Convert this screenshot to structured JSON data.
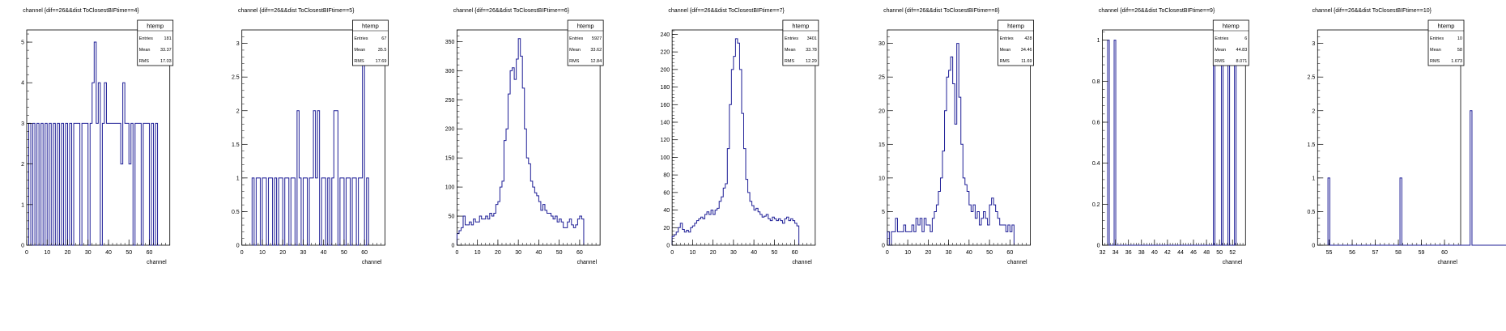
{
  "chart_data": [
    {
      "type": "bar",
      "title": "channel {dif==26&&dist ToClosestBIFtime==4}",
      "xlabel": "channel",
      "xlim": [
        0,
        70
      ],
      "ylim": [
        0,
        5.3
      ],
      "xticks": [
        0,
        10,
        20,
        30,
        40,
        50,
        60
      ],
      "yticks": [
        0,
        1,
        2,
        3,
        4,
        5
      ],
      "stats": {
        "name": "htemp",
        "entries": "181",
        "mean": "33.37",
        "rms": "17.03"
      },
      "x_start": 1,
      "bin_width": 1,
      "values": [
        3,
        0,
        3,
        0,
        3,
        0,
        3,
        0,
        3,
        0,
        3,
        0,
        3,
        0,
        3,
        0,
        3,
        0,
        3,
        0,
        3,
        0,
        3,
        3,
        3,
        0,
        3,
        3,
        3,
        0,
        3,
        4,
        5,
        3,
        4,
        0,
        3,
        4,
        3,
        3,
        3,
        3,
        3,
        3,
        3,
        2,
        4,
        3,
        3,
        2,
        3,
        0,
        3,
        3,
        3,
        0,
        3,
        3,
        3,
        0,
        3,
        0,
        3,
        0
      ]
    },
    {
      "type": "bar",
      "title": "channel {dif==26&&dist ToClosestBIFtime==5}",
      "xlabel": "channel",
      "xlim": [
        0,
        70
      ],
      "ylim": [
        0,
        3.2
      ],
      "xticks": [
        0,
        10,
        20,
        30,
        40,
        50,
        60
      ],
      "yticks": [
        0,
        0.5,
        1,
        1.5,
        2,
        2.5,
        3
      ],
      "stats": {
        "name": "htemp",
        "entries": "67",
        "mean": "35.5",
        "rms": "17.69"
      },
      "x_start": 5,
      "bin_width": 1,
      "values": [
        1,
        0,
        1,
        1,
        0,
        1,
        1,
        0,
        1,
        1,
        0,
        1,
        0,
        1,
        1,
        0,
        1,
        1,
        0,
        1,
        1,
        0,
        2,
        1,
        0,
        1,
        1,
        0,
        1,
        1,
        2,
        1,
        2,
        0,
        1,
        1,
        0,
        1,
        0,
        1,
        2,
        2,
        0,
        1,
        1,
        0,
        1,
        1,
        0,
        1,
        1,
        0,
        1,
        1,
        3,
        0,
        1
      ]
    },
    {
      "type": "bar",
      "title": "channel {dif==26&&dist ToClosestBIFtime==6}",
      "xlabel": "channel",
      "xlim": [
        0,
        70
      ],
      "ylim": [
        0,
        370
      ],
      "xticks": [
        0,
        10,
        20,
        30,
        40,
        50,
        60
      ],
      "yticks": [
        0,
        50,
        100,
        150,
        200,
        250,
        300,
        350
      ],
      "stats": {
        "name": "htemp",
        "entries": "5927",
        "mean": "33.62",
        "rms": "12.84"
      },
      "x_start": 0,
      "bin_width": 1,
      "values": [
        20,
        25,
        30,
        50,
        35,
        35,
        40,
        35,
        45,
        40,
        40,
        50,
        45,
        45,
        50,
        45,
        55,
        50,
        55,
        70,
        75,
        100,
        110,
        180,
        200,
        260,
        300,
        305,
        285,
        320,
        355,
        325,
        270,
        200,
        150,
        140,
        110,
        100,
        90,
        85,
        75,
        60,
        70,
        60,
        55,
        55,
        50,
        45,
        50,
        40,
        45,
        40,
        30,
        30,
        40,
        45,
        35,
        30,
        35,
        45,
        50,
        45
      ]
    },
    {
      "type": "bar",
      "title": "channel {dif==26&&dist ToClosestBIFtime==7}",
      "xlabel": "channel",
      "xlim": [
        0,
        70
      ],
      "ylim": [
        0,
        245
      ],
      "xticks": [
        0,
        10,
        20,
        30,
        40,
        50,
        60
      ],
      "yticks": [
        0,
        20,
        40,
        60,
        80,
        100,
        120,
        140,
        160,
        180,
        200,
        220,
        240
      ],
      "stats": {
        "name": "htemp",
        "entries": "3401",
        "mean": "33.78",
        "rms": "12.29"
      },
      "x_start": 0,
      "bin_width": 1,
      "values": [
        10,
        12,
        15,
        20,
        25,
        18,
        15,
        17,
        15,
        20,
        22,
        25,
        28,
        30,
        32,
        30,
        35,
        38,
        35,
        40,
        35,
        40,
        42,
        50,
        55,
        65,
        70,
        110,
        160,
        200,
        215,
        235,
        230,
        200,
        150,
        110,
        75,
        60,
        50,
        45,
        40,
        42,
        38,
        35,
        32,
        33,
        35,
        30,
        28,
        32,
        30,
        28,
        30,
        28,
        25,
        30,
        32,
        28,
        30,
        28,
        25,
        22
      ]
    },
    {
      "type": "bar",
      "title": "channel {dif==26&&dist ToClosestBIFtime==8}",
      "xlabel": "channel",
      "xlim": [
        0,
        70
      ],
      "ylim": [
        0,
        32
      ],
      "xticks": [
        0,
        10,
        20,
        30,
        40,
        50,
        60
      ],
      "yticks": [
        0,
        5,
        10,
        15,
        20,
        25,
        30
      ],
      "stats": {
        "name": "htemp",
        "entries": "428",
        "mean": "34.46",
        "rms": "11.69"
      },
      "x_start": 0,
      "bin_width": 1,
      "values": [
        2,
        0,
        2,
        2,
        4,
        2,
        2,
        2,
        3,
        2,
        2,
        2,
        3,
        2,
        4,
        3,
        4,
        2,
        4,
        3,
        3,
        2,
        4,
        5,
        6,
        8,
        10,
        14,
        20,
        25,
        26,
        28,
        24,
        18,
        30,
        22,
        15,
        10,
        9,
        8,
        6,
        5,
        6,
        4,
        5,
        3,
        4,
        5,
        4,
        3,
        6,
        7,
        6,
        5,
        4,
        3,
        3,
        3,
        2,
        3,
        2,
        3
      ]
    },
    {
      "type": "bar",
      "title": "channel {dif==26&&dist ToClosestBIFtime==9}",
      "xlabel": "channel",
      "xlim": [
        32,
        54
      ],
      "ylim": [
        0,
        1.05
      ],
      "xticks": [
        32,
        34,
        36,
        38,
        40,
        42,
        44,
        46,
        48,
        50,
        52
      ],
      "yticks": [
        0,
        0.2,
        0.4,
        0.6,
        0.8,
        1
      ],
      "stats": {
        "name": "htemp",
        "entries": "6",
        "mean": "44.83",
        "rms": "8.071"
      },
      "x_start": 32.8,
      "bin_width": 0.25,
      "values": [
        1,
        0,
        0,
        0,
        1,
        0,
        0,
        0,
        0,
        0,
        0,
        0,
        0,
        0,
        0,
        0,
        0,
        0,
        0,
        0,
        0,
        0,
        0,
        0,
        0,
        0,
        0,
        0,
        0,
        0,
        0,
        0,
        0,
        0,
        0,
        0,
        0,
        0,
        0,
        0,
        0,
        0,
        0,
        0,
        0,
        0,
        0,
        0,
        0,
        0,
        0,
        0,
        0,
        0,
        0,
        0,
        0,
        0,
        0,
        0,
        0,
        0,
        0,
        0,
        0,
        1,
        0,
        0,
        0,
        0,
        1,
        0,
        0,
        0,
        1,
        0,
        0,
        0,
        1
      ]
    },
    {
      "type": "bar",
      "title": "channel {dif==26&&dist ToClosestBIFtime==10}",
      "xlabel": "channel",
      "xlim": [
        54.5,
        60.7
      ],
      "ylim": [
        0,
        3.2
      ],
      "xticks": [
        55,
        56,
        57,
        58,
        59,
        60
      ],
      "yticks": [
        0,
        0.5,
        1,
        1.5,
        2,
        2.5,
        3
      ],
      "stats": {
        "name": "htemp",
        "entries": "10",
        "mean": "58",
        "rms": "1.673"
      },
      "x_start": 54.95,
      "bin_width": 0.08,
      "values": [
        1,
        0,
        0,
        0,
        0,
        0,
        0,
        0,
        0,
        0,
        0,
        0,
        0,
        0,
        0,
        0,
        0,
        0,
        0,
        0,
        0,
        0,
        0,
        0,
        0,
        0,
        0,
        0,
        0,
        0,
        0,
        0,
        0,
        0,
        0,
        0,
        0,
        0,
        0,
        1,
        0,
        0,
        0,
        0,
        0,
        0,
        0,
        0,
        0,
        0,
        0,
        0,
        0,
        0,
        0,
        0,
        0,
        0,
        0,
        0,
        0,
        0,
        0,
        0,
        0,
        0,
        0,
        0,
        0,
        0,
        0,
        0,
        0,
        0,
        0,
        0,
        0,
        2,
        0,
        0,
        0,
        0,
        0,
        0,
        0,
        0,
        0,
        0,
        0,
        0,
        0,
        0,
        0,
        0,
        0,
        0,
        0,
        0,
        0,
        0,
        0,
        0,
        0,
        0,
        0,
        0,
        0,
        0,
        0,
        0,
        0,
        0,
        0,
        0,
        0,
        0,
        0,
        0,
        0,
        2,
        0,
        0,
        0,
        0,
        0,
        0,
        0,
        0,
        0,
        0,
        0,
        0,
        0,
        0,
        0,
        0,
        0,
        0,
        0,
        0,
        0,
        0,
        0,
        0,
        0,
        0,
        0,
        0,
        0,
        0,
        0,
        0,
        0,
        1,
        0,
        0,
        0,
        0,
        0,
        0,
        0,
        0,
        0,
        0,
        0,
        0,
        0,
        0,
        0,
        0,
        0,
        0,
        0,
        0,
        0,
        0,
        0,
        0,
        0,
        0,
        0,
        0,
        0,
        0,
        0,
        0,
        3
      ]
    }
  ],
  "labels": {
    "entries_label": "Entries",
    "mean_label": "Mean",
    "rms_label": "RMS"
  },
  "colors": {
    "histogram": "#1e1e96",
    "axis": "#000000"
  }
}
